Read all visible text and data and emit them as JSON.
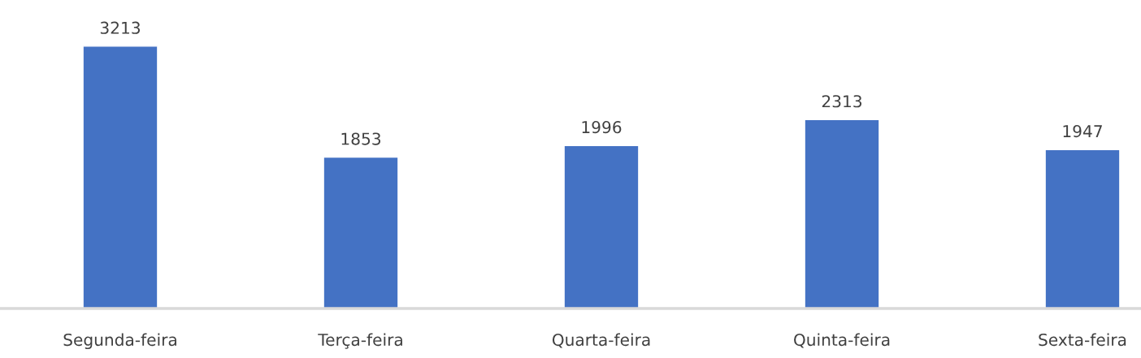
{
  "chart_data": {
    "type": "bar",
    "categories": [
      "Segunda-feira",
      "Terça-feira",
      "Quarta-feira",
      "Quinta-feira",
      "Sexta-feira"
    ],
    "values": [
      3213,
      1853,
      1996,
      2313,
      1947
    ],
    "color": "#4472c4",
    "data_labels": true,
    "grid": false,
    "legend": false
  }
}
